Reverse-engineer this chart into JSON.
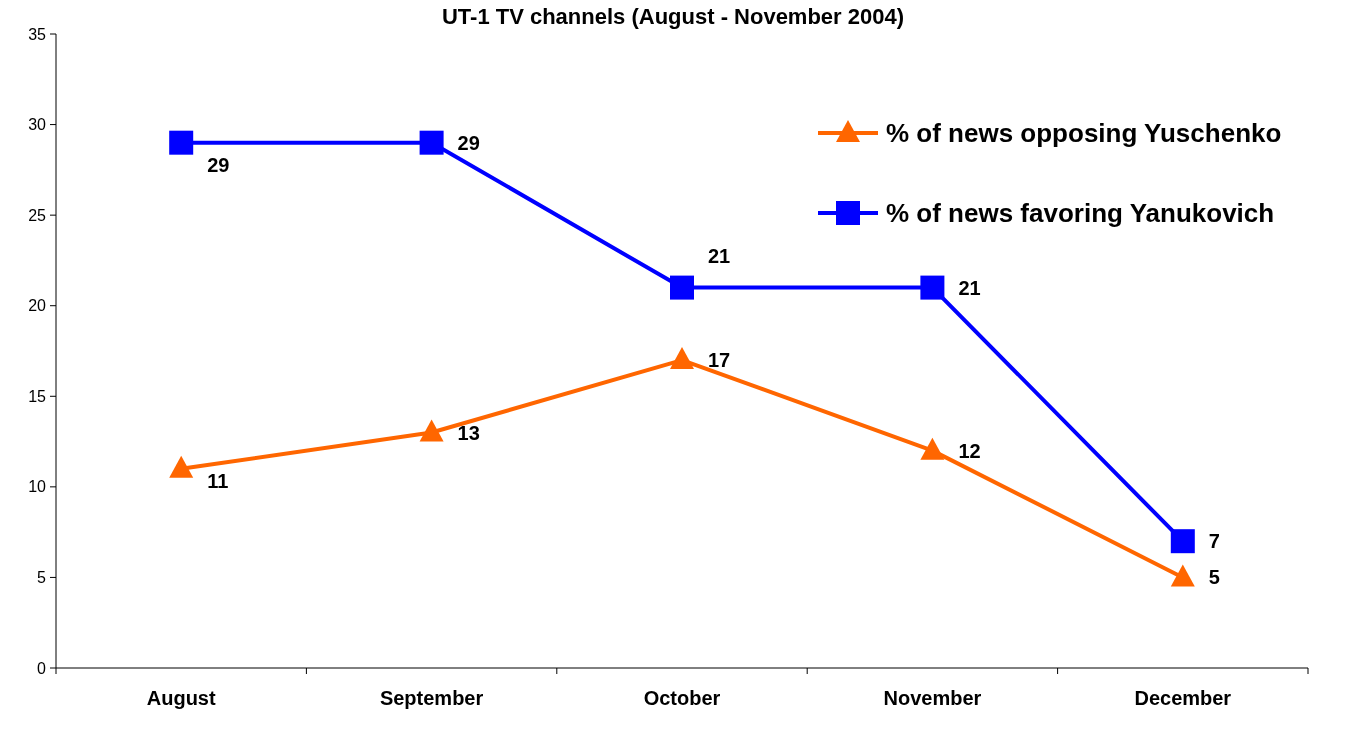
{
  "chart_data": {
    "type": "line",
    "title": "UT-1 TV channels (August - November 2004)",
    "categories": [
      "August",
      "September",
      "October",
      "November",
      "December"
    ],
    "series": [
      {
        "name": "% of news opposing Yuschenko",
        "color": "#ff6600",
        "marker": "triangle",
        "values": [
          11,
          13,
          17,
          12,
          5
        ]
      },
      {
        "name": "% of news favoring Yanukovich",
        "color": "#0000ff",
        "marker": "square",
        "values": [
          29,
          29,
          21,
          21,
          7
        ]
      }
    ],
    "ylim": [
      0,
      35
    ],
    "yticks": [
      0,
      5,
      10,
      15,
      20,
      25,
      30,
      35
    ],
    "grid": false,
    "legend": "top right",
    "data_labels": true,
    "line_style": "solid"
  }
}
